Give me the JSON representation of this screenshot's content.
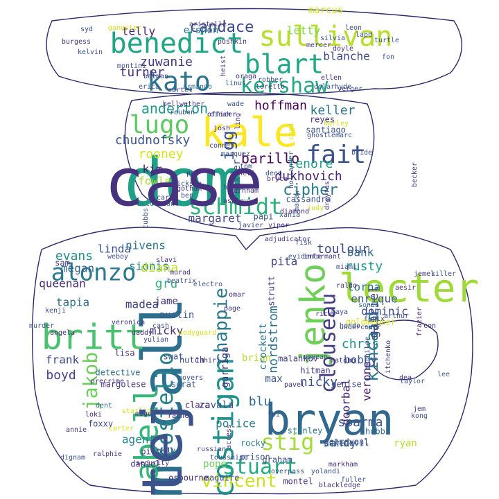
{
  "image": {
    "kind": "word-cloud",
    "words": [
      {
        "text": "dom",
        "color": "#1fa187"
      },
      {
        "text": "mccall",
        "color": "#2d708e"
      },
      {
        "text": "bryan",
        "color": "#31688e"
      },
      {
        "text": "lecter",
        "color": "#a0da39"
      },
      {
        "text": "kale",
        "color": "#fde725"
      },
      {
        "text": "britt",
        "color": "#4ac16d"
      },
      {
        "text": "abell",
        "color": "#35b779"
      },
      {
        "text": "jenko",
        "color": "#6ece58"
      },
      {
        "text": "costigan",
        "color": "#21918c"
      },
      {
        "text": "benedict",
        "color": "#20a486"
      },
      {
        "text": "sullivan",
        "color": "#b5de2b"
      },
      {
        "text": "blart",
        "color": "#22a785"
      },
      {
        "text": "kato",
        "color": "#2c728e"
      },
      {
        "text": "kershaw",
        "color": "#22a884"
      },
      {
        "text": "lugo",
        "color": "#5ec962"
      },
      {
        "text": "fait",
        "color": "#3b528b"
      },
      {
        "text": "schmidt",
        "color": "#2db27d"
      },
      {
        "text": "alonzo",
        "color": "#2a788e"
      },
      {
        "text": "clouseau",
        "color": "#433e85"
      },
      {
        "text": "costello",
        "color": "#26828e"
      },
      {
        "text": "stig",
        "color": "#a5db36"
      },
      {
        "text": "stuart",
        "color": "#25ab82"
      },
      {
        "text": "jakob",
        "color": "#6ccd5a"
      },
      {
        "text": "kincaid",
        "color": "#2a788e"
      },
      {
        "text": "chappie",
        "color": "#29798e"
      },
      {
        "text": "candace",
        "color": "#3e4989"
      },
      {
        "text": "vincent",
        "color": "#c8e020"
      },
      {
        "text": "igg",
        "color": "#3b528b"
      },
      {
        "text": "anderton",
        "color": "#1f9a8a"
      },
      {
        "text": "hoffman",
        "color": "#440154"
      },
      {
        "text": "keller",
        "color": "#2c728e"
      },
      {
        "text": "chudnofsky",
        "color": "#3a548c"
      },
      {
        "text": "barillo",
        "color": "#450457"
      },
      {
        "text": "rooney",
        "color": "#d5e21a"
      },
      {
        "text": "lenore",
        "color": "#1f9e89"
      },
      {
        "text": "dukhovich",
        "color": "#482576"
      },
      {
        "text": "cipher",
        "color": "#2a788e"
      },
      {
        "text": "kim",
        "color": "#481a6c"
      },
      {
        "text": "fowler",
        "color": "#a8db34"
      },
      {
        "text": "margaret",
        "color": "#3f4889"
      },
      {
        "text": "zuwanie",
        "color": "#453781"
      },
      {
        "text": "turner",
        "color": "#46327e"
      },
      {
        "text": "telly",
        "color": "#481f70"
      },
      {
        "text": "ershon",
        "color": "#2c728e"
      },
      {
        "text": "letty",
        "color": "#84d44b"
      },
      {
        "text": "blanche",
        "color": "#3e4989"
      },
      {
        "text": "marcus",
        "color": "#d8e219"
      },
      {
        "text": "nivens",
        "color": "#2a788e"
      },
      {
        "text": "sionis",
        "color": "#25838e"
      },
      {
        "text": "linda",
        "color": "#3b528b"
      },
      {
        "text": "evans",
        "color": "#21918c"
      },
      {
        "text": "megan",
        "color": "#31688e"
      },
      {
        "text": "queenan",
        "color": "#472c7a"
      },
      {
        "text": "tapia",
        "color": "#2f6c8e"
      },
      {
        "text": "diana",
        "color": "#bddf26"
      },
      {
        "text": "gru",
        "color": "#2db27d"
      },
      {
        "text": "jame",
        "color": "#46307e"
      },
      {
        "text": "madea",
        "color": "#414487"
      },
      {
        "text": "austin",
        "color": "#3a548c"
      },
      {
        "text": "micky",
        "color": "#46327e"
      },
      {
        "text": "frank",
        "color": "#3f4889"
      },
      {
        "text": "boyd",
        "color": "#414487"
      },
      {
        "text": "toulour",
        "color": "#3e4989"
      },
      {
        "text": "bank",
        "color": "#31688e"
      },
      {
        "text": "rusty",
        "color": "#1f9a8a"
      },
      {
        "text": "pita",
        "color": "#3f4889"
      },
      {
        "text": "lorna",
        "color": "#2c728e"
      },
      {
        "text": "enrique",
        "color": "#3b528b"
      },
      {
        "text": "verone",
        "color": "#48186a"
      },
      {
        "text": "dominic",
        "color": "#3e4989"
      },
      {
        "text": "chris",
        "color": "#21918c"
      },
      {
        "text": "bobby",
        "color": "#3b528b"
      },
      {
        "text": "gabriel",
        "color": "#3f4889"
      },
      {
        "text": "nordstrom",
        "color": "#2c728e"
      },
      {
        "text": "doorbal",
        "color": "#482173"
      },
      {
        "text": "nicky",
        "color": "#3b528b"
      },
      {
        "text": "max",
        "color": "#3a548c"
      },
      {
        "text": "blu",
        "color": "#31688e"
      },
      {
        "text": "police",
        "color": "#27808e"
      },
      {
        "text": "sparma",
        "color": "#3b528b"
      },
      {
        "text": "sandy",
        "color": "#33638d"
      },
      {
        "text": "zavala",
        "color": "#3b528b"
      },
      {
        "text": "agent",
        "color": "#25838e"
      },
      {
        "text": "pope",
        "color": "#6ccd5a"
      },
      {
        "text": "garriga",
        "color": "#46327e"
      },
      {
        "text": "brian",
        "color": "#b5de2b"
      },
      {
        "text": "crockett",
        "color": "#2c728e"
      },
      {
        "text": "strutt",
        "color": "#46327e"
      },
      {
        "text": "ryan",
        "color": "#addc30"
      },
      {
        "text": "reyes",
        "color": "#46327e"
      },
      {
        "text": "santiago",
        "color": "#3b528b"
      },
      {
        "text": "hitman",
        "color": "#433e85"
      },
      {
        "text": "malankov",
        "color": "#433e85"
      },
      {
        "text": "stanley",
        "color": "#2a788e"
      },
      {
        "text": "hobbs",
        "color": "#31688e"
      },
      {
        "text": "daredevil",
        "color": "#3b528b"
      },
      {
        "text": "frazier",
        "color": "#481a6c"
      },
      {
        "text": "montel",
        "color": "#46327e"
      },
      {
        "text": "graham",
        "color": "#3b528b"
      },
      {
        "text": "maguire",
        "color": "#3e4989"
      },
      {
        "text": "osbourne",
        "color": "#482878"
      },
      {
        "text": "prison",
        "color": "#3b528b"
      },
      {
        "text": "rocky",
        "color": "#2a788e"
      },
      {
        "text": "tetravaal",
        "color": "#3b528b"
      },
      {
        "text": "pistol",
        "color": "#3f4889"
      },
      {
        "text": "daniel",
        "color": "#46327e"
      },
      {
        "text": "foxxy",
        "color": "#3f4889"
      },
      {
        "text": "clara",
        "color": "#482173"
      },
      {
        "text": "surat",
        "color": "#3b528b"
      },
      {
        "text": "dent",
        "color": "#31688e"
      },
      {
        "text": "loki",
        "color": "#482173"
      },
      {
        "text": "precrime",
        "color": "#46327e"
      },
      {
        "text": "detective",
        "color": "#2c728e"
      },
      {
        "text": "margolese",
        "color": "#46327e"
      },
      {
        "text": "hutch",
        "color": "#3e4989"
      },
      {
        "text": "swat",
        "color": "#3b528b"
      },
      {
        "text": "lisa",
        "color": "#46327e"
      },
      {
        "text": "sam",
        "color": "#46327e"
      },
      {
        "text": "kenji",
        "color": "#3b528b"
      },
      {
        "text": "angela",
        "color": "#46327e"
      },
      {
        "text": "denise",
        "color": "#3e4989"
      },
      {
        "text": "goldmember",
        "color": "#d5e21a"
      },
      {
        "text": "itchenko",
        "color": "#46327e"
      },
      {
        "text": "mathilde",
        "color": "#3b528b"
      },
      {
        "text": "undercover",
        "color": "#3e4989"
      },
      {
        "text": "fenix",
        "color": "#3b528b"
      },
      {
        "text": "aesir",
        "color": "#46327e"
      },
      {
        "text": "arthur",
        "color": "#3b528b"
      },
      {
        "text": "sonia",
        "color": "#2c728e"
      },
      {
        "text": "bride",
        "color": "#3b528b"
      },
      {
        "text": "cassandra",
        "color": "#3b528b"
      },
      {
        "text": "judy",
        "color": "#d5e21a"
      },
      {
        "text": "xania",
        "color": "#3b528b"
      },
      {
        "text": "viper",
        "color": "#46327e"
      },
      {
        "text": "javier",
        "color": "#3e4989"
      },
      {
        "text": "papi",
        "color": "#3b528b"
      },
      {
        "text": "burnham",
        "color": "#46327e"
      },
      {
        "text": "baxter",
        "color": "#3b528b"
      },
      {
        "text": "cart",
        "color": "#3e4989"
      },
      {
        "text": "accountant",
        "color": "#2c728e"
      },
      {
        "text": "tubbs",
        "color": "#3b528b"
      },
      {
        "text": "ling",
        "color": "#46327e"
      },
      {
        "text": "marquez",
        "color": "#3b528b"
      },
      {
        "text": "conner",
        "color": "#3e4989"
      },
      {
        "text": "josh",
        "color": "#46327e"
      },
      {
        "text": "dinah",
        "color": "#3b528b"
      },
      {
        "text": "wade",
        "color": "#3b528b"
      },
      {
        "text": "chad",
        "color": "#d5e21a"
      },
      {
        "text": "harley",
        "color": "#d5e21a"
      },
      {
        "text": "lemarc",
        "color": "#3b528b"
      },
      {
        "text": "toretto",
        "color": "#3e4989"
      },
      {
        "text": "heist",
        "color": "#46327e"
      },
      {
        "text": "linus",
        "color": "#3b528b"
      },
      {
        "text": "cartel",
        "color": "#3e4989"
      },
      {
        "text": "armando",
        "color": "#2c728e"
      },
      {
        "text": "erica",
        "color": "#3b528b"
      },
      {
        "text": "ellen",
        "color": "#46327e"
      },
      {
        "text": "dolarhyde",
        "color": "#3b528b"
      },
      {
        "text": "verger",
        "color": "#3e4989"
      },
      {
        "text": "mercer",
        "color": "#46327e"
      },
      {
        "text": "silvia",
        "color": "#3b528b"
      },
      {
        "text": "pushkin",
        "color": "#46327e"
      },
      {
        "text": "lapd",
        "color": "#3b528b"
      },
      {
        "text": "leon",
        "color": "#3b528b"
      },
      {
        "text": "aristolle",
        "color": "#46327e"
      },
      {
        "text": "gangster",
        "color": "#d5e21a"
      },
      {
        "text": "syd",
        "color": "#3b528b"
      },
      {
        "text": "burgess",
        "color": "#46327e"
      },
      {
        "text": "montini",
        "color": "#3b528b"
      },
      {
        "text": "batman",
        "color": "#3e4989"
      },
      {
        "text": "oraga",
        "color": "#46327e"
      },
      {
        "text": "robber",
        "color": "#3b528b"
      },
      {
        "text": "security",
        "color": "#46327e"
      },
      {
        "text": "toussaint",
        "color": "#3b528b"
      },
      {
        "text": "russian",
        "color": "#3e4989"
      },
      {
        "text": "overpass",
        "color": "#3b528b"
      },
      {
        "text": "blackledge",
        "color": "#46327e"
      },
      {
        "text": "fbi",
        "color": "#3b528b"
      },
      {
        "text": "access",
        "color": "#46327e"
      },
      {
        "text": "migos",
        "color": "#46327e"
      },
      {
        "text": "carter",
        "color": "#d5e21a"
      },
      {
        "text": "starling",
        "color": "#d5e21a"
      },
      {
        "text": "omar",
        "color": "#46327e"
      },
      {
        "text": "beatrix",
        "color": "#3b528b"
      },
      {
        "text": "bodyguard",
        "color": "#d5e21a"
      },
      {
        "text": "murad",
        "color": "#46327e"
      },
      {
        "text": "cash",
        "color": "#3b528b"
      },
      {
        "text": "daddy",
        "color": "#46327e"
      },
      {
        "text": "veronica",
        "color": "#46327e"
      },
      {
        "text": "ghost",
        "color": "#3b528b"
      },
      {
        "text": "becker",
        "color": "#46327e"
      },
      {
        "text": "macaw",
        "color": "#3b528b"
      },
      {
        "text": "diamond",
        "color": "#46327e"
      },
      {
        "text": "heroin",
        "color": "#3b528b"
      },
      {
        "text": "ashley",
        "color": "#46327e"
      },
      {
        "text": "turtle",
        "color": "#3b528b"
      },
      {
        "text": "fon",
        "color": "#3b528b"
      },
      {
        "text": "doyle",
        "color": "#46327e"
      },
      {
        "text": "kelvin",
        "color": "#3b528b"
      },
      {
        "text": "pai",
        "color": "#46327e"
      },
      {
        "text": "dickson",
        "color": "#3b528b"
      },
      {
        "text": "genevi",
        "color": "#46327e"
      },
      {
        "text": "tom",
        "color": "#3b528b"
      },
      {
        "text": "gotham",
        "color": "#46327e"
      },
      {
        "text": "ben",
        "color": "#3b528b"
      },
      {
        "text": "bellwether",
        "color": "#46327e"
      },
      {
        "text": "reuben",
        "color": "#3b528b"
      },
      {
        "text": "officer",
        "color": "#46327e"
      },
      {
        "text": "hollander",
        "color": "#3b528b"
      },
      {
        "text": "dreyfus",
        "color": "#46327e"
      },
      {
        "text": "deon",
        "color": "#3b528b"
      },
      {
        "text": "bryce",
        "color": "#46327e"
      },
      {
        "text": "fisk",
        "color": "#3b528b"
      },
      {
        "text": "informant",
        "color": "#46327e"
      },
      {
        "text": "evidence",
        "color": "#3b528b"
      },
      {
        "text": "miami",
        "color": "#3e4989"
      },
      {
        "text": "jemel",
        "color": "#46327e"
      },
      {
        "text": "killer",
        "color": "#3b528b"
      },
      {
        "text": "adjudicator",
        "color": "#46327e"
      },
      {
        "text": "electro",
        "color": "#3b528b"
      },
      {
        "text": "slavi",
        "color": "#46327e"
      },
      {
        "text": "weboy",
        "color": "#3b528b"
      },
      {
        "text": "lahiri",
        "color": "#46327e"
      },
      {
        "text": "moyers",
        "color": "#3b528b"
      },
      {
        "text": "rachel",
        "color": "#46327e"
      },
      {
        "text": "lively",
        "color": "#3b528b"
      },
      {
        "text": "ralphie",
        "color": "#46327e"
      },
      {
        "text": "dignam",
        "color": "#3b528b"
      },
      {
        "text": "annie",
        "color": "#46327e"
      },
      {
        "text": "yolandi",
        "color": "#3b528b"
      },
      {
        "text": "markham",
        "color": "#46327e"
      },
      {
        "text": "fuller",
        "color": "#3b528b"
      },
      {
        "text": "matobo",
        "color": "#46327e"
      },
      {
        "text": "mayean",
        "color": "#3b528b"
      },
      {
        "text": "pavel",
        "color": "#46327e"
      },
      {
        "text": "taylor",
        "color": "#3b528b"
      },
      {
        "text": "dea",
        "color": "#46327e"
      },
      {
        "text": "kong",
        "color": "#3b528b"
      },
      {
        "text": "jem",
        "color": "#46327e"
      },
      {
        "text": "lee",
        "color": "#3b528b"
      },
      {
        "text": "ricky",
        "color": "#46327e"
      },
      {
        "text": "maya",
        "color": "#3b528b"
      },
      {
        "text": "raldo",
        "color": "#46327e"
      },
      {
        "text": "hondo",
        "color": "#3b528b"
      },
      {
        "text": "con",
        "color": "#46327e"
      },
      {
        "text": "murder",
        "color": "#3b528b"
      },
      {
        "text": "page",
        "color": "#46327e"
      },
      {
        "text": "yulian",
        "color": "#3b528b"
      },
      {
        "text": "case",
        "color": "#46327e"
      },
      {
        "text": "tej",
        "color": "#3b528b"
      }
    ]
  }
}
